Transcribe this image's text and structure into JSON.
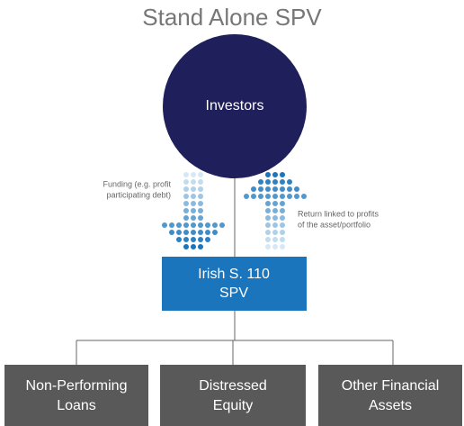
{
  "title": "Stand Alone SPV",
  "nodes": [
    {
      "id": "investors",
      "label": [
        "Investors"
      ]
    },
    {
      "id": "spv",
      "label": [
        "Irish S. 110",
        "SPV"
      ]
    },
    {
      "id": "npl",
      "label": [
        "Non-Performing",
        "Loans"
      ]
    },
    {
      "id": "equity",
      "label": [
        "Distressed",
        "Equity"
      ]
    },
    {
      "id": "other",
      "label": [
        "Other Financial",
        "Assets"
      ]
    }
  ],
  "annotations": [
    {
      "text": [
        "Funding (e.g. profit",
        "participating debt)"
      ]
    },
    {
      "text": [
        "Return linked to profits",
        "of the asset/portfolio"
      ]
    }
  ]
}
